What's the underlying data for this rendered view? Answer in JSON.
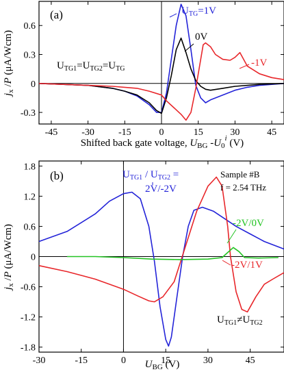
{
  "chart_data": [
    {
      "type": "line",
      "panel_label": "(a)",
      "xlabel": "Shifted back gate voltage, U_BG - U_0^i (V)",
      "ylabel": "j_x / P (μA/Wcm)",
      "xlim": [
        -50,
        50
      ],
      "ylim": [
        -0.42,
        0.85
      ],
      "xticks": [
        -45,
        -30,
        -15,
        0,
        15,
        30,
        45
      ],
      "yticks": [
        -0.3,
        0,
        0.3,
        0.6
      ],
      "ytick_labels": [
        "-0.3",
        "0",
        "0.3",
        "0.6"
      ],
      "annotation_condition": "U_TG1 = U_TG2 = U_TG",
      "series": [
        {
          "name": "U_TG = 1V",
          "color": "#2323d8",
          "points": [
            [
              -50,
              0
            ],
            [
              -40,
              -0.01
            ],
            [
              -30,
              -0.02
            ],
            [
              -20,
              -0.05
            ],
            [
              -15,
              -0.08
            ],
            [
              -10,
              -0.13
            ],
            [
              -5,
              -0.22
            ],
            [
              -2,
              -0.3
            ],
            [
              0,
              -0.3
            ],
            [
              2,
              -0.1
            ],
            [
              4,
              0.25
            ],
            [
              6,
              0.6
            ],
            [
              8,
              0.82
            ],
            [
              10,
              0.7
            ],
            [
              12,
              0.35
            ],
            [
              14,
              -0.02
            ],
            [
              16,
              -0.15
            ],
            [
              18,
              -0.2
            ],
            [
              20,
              -0.17
            ],
            [
              25,
              -0.12
            ],
            [
              30,
              -0.07
            ],
            [
              35,
              -0.04
            ],
            [
              40,
              -0.02
            ],
            [
              45,
              -0.01
            ],
            [
              50,
              0
            ]
          ]
        },
        {
          "name": "0V",
          "color": "#000000",
          "points": [
            [
              -50,
              0
            ],
            [
              -40,
              -0.01
            ],
            [
              -30,
              -0.02
            ],
            [
              -20,
              -0.05
            ],
            [
              -15,
              -0.08
            ],
            [
              -10,
              -0.12
            ],
            [
              -5,
              -0.2
            ],
            [
              -2,
              -0.28
            ],
            [
              0,
              -0.31
            ],
            [
              2,
              -0.15
            ],
            [
              4,
              0.08
            ],
            [
              6,
              0.35
            ],
            [
              8,
              0.47
            ],
            [
              10,
              0.32
            ],
            [
              12,
              0.15
            ],
            [
              14,
              0.03
            ],
            [
              16,
              -0.03
            ],
            [
              18,
              -0.06
            ],
            [
              20,
              -0.07
            ],
            [
              25,
              -0.05
            ],
            [
              30,
              -0.03
            ],
            [
              40,
              -0.01
            ],
            [
              50,
              0
            ]
          ]
        },
        {
          "name": "-1V",
          "color": "#e8262a",
          "points": [
            [
              -50,
              0
            ],
            [
              -40,
              -0.01
            ],
            [
              -30,
              -0.02
            ],
            [
              -20,
              -0.03
            ],
            [
              -10,
              -0.05
            ],
            [
              -5,
              -0.08
            ],
            [
              0,
              -0.12
            ],
            [
              2,
              -0.18
            ],
            [
              5,
              -0.25
            ],
            [
              8,
              -0.32
            ],
            [
              10,
              -0.38
            ],
            [
              12,
              -0.3
            ],
            [
              14,
              -0.05
            ],
            [
              16,
              0.25
            ],
            [
              17,
              0.4
            ],
            [
              18,
              0.42
            ],
            [
              20,
              0.38
            ],
            [
              22,
              0.3
            ],
            [
              25,
              0.25
            ],
            [
              28,
              0.24
            ],
            [
              30,
              0.27
            ],
            [
              32,
              0.32
            ],
            [
              35,
              0.18
            ],
            [
              40,
              0.1
            ],
            [
              45,
              0.06
            ],
            [
              50,
              0.04
            ]
          ]
        }
      ]
    },
    {
      "type": "line",
      "panel_label": "(b)",
      "xlabel": "U_BG (V)",
      "ylabel": "j_x / P (μA/Wcm)",
      "xlim": [
        -30,
        57
      ],
      "ylim": [
        -1.9,
        1.9
      ],
      "xticks": [
        -30,
        -15,
        0,
        15,
        30,
        45
      ],
      "yticks": [
        -1.8,
        -1.2,
        -0.6,
        0,
        0.6,
        1.2,
        1.8
      ],
      "ytick_labels": [
        "-1.8",
        "-1.2",
        "-0.6",
        "0",
        "0.6",
        "1.2",
        "1.8"
      ],
      "annotation_condition": "U_TG1 ≠ U_TG2",
      "sample_label": "Sample #B",
      "frequency_label": "f = 2.54 THz",
      "series_header": "U_TG1 / U_TG2 =",
      "series": [
        {
          "name": "2V/-2V",
          "color": "#2323d8",
          "points": [
            [
              -30,
              0.3
            ],
            [
              -20,
              0.5
            ],
            [
              -10,
              0.85
            ],
            [
              -5,
              1.1
            ],
            [
              0,
              1.25
            ],
            [
              3,
              1.28
            ],
            [
              6,
              1.15
            ],
            [
              9,
              0.6
            ],
            [
              11,
              -0.1
            ],
            [
              13,
              -1.0
            ],
            [
              15,
              -1.65
            ],
            [
              16,
              -1.78
            ],
            [
              17,
              -1.6
            ],
            [
              19,
              -0.8
            ],
            [
              21,
              0.0
            ],
            [
              23,
              0.6
            ],
            [
              25,
              0.92
            ],
            [
              28,
              0.98
            ],
            [
              32,
              0.9
            ],
            [
              36,
              0.75
            ],
            [
              40,
              0.6
            ],
            [
              45,
              0.45
            ],
            [
              50,
              0.3
            ],
            [
              57,
              0.15
            ]
          ]
        },
        {
          "name": "-2V/1V",
          "color": "#e8262a",
          "points": [
            [
              -30,
              -0.18
            ],
            [
              -20,
              -0.3
            ],
            [
              -10,
              -0.45
            ],
            [
              -5,
              -0.55
            ],
            [
              0,
              -0.65
            ],
            [
              5,
              -0.78
            ],
            [
              9,
              -0.88
            ],
            [
              11,
              -0.9
            ],
            [
              14,
              -0.8
            ],
            [
              18,
              -0.5
            ],
            [
              22,
              0.2
            ],
            [
              26,
              0.9
            ],
            [
              30,
              1.4
            ],
            [
              33,
              1.58
            ],
            [
              35,
              1.4
            ],
            [
              37,
              0.6
            ],
            [
              38,
              0.0
            ],
            [
              40,
              -0.7
            ],
            [
              42,
              -1.05
            ],
            [
              44,
              -1.1
            ],
            [
              47,
              -0.8
            ],
            [
              50,
              -0.55
            ],
            [
              53,
              -0.45
            ],
            [
              57,
              -0.32
            ]
          ]
        },
        {
          "name": "-2V/0V",
          "color": "#22c322",
          "points": [
            [
              -20,
              0
            ],
            [
              -10,
              0
            ],
            [
              0,
              -0.02
            ],
            [
              10,
              -0.05
            ],
            [
              20,
              -0.06
            ],
            [
              30,
              -0.05
            ],
            [
              35,
              -0.02
            ],
            [
              37,
              0.08
            ],
            [
              39,
              0.18
            ],
            [
              41,
              0.1
            ],
            [
              43,
              -0.02
            ],
            [
              48,
              -0.03
            ],
            [
              55,
              -0.02
            ]
          ]
        }
      ]
    }
  ]
}
